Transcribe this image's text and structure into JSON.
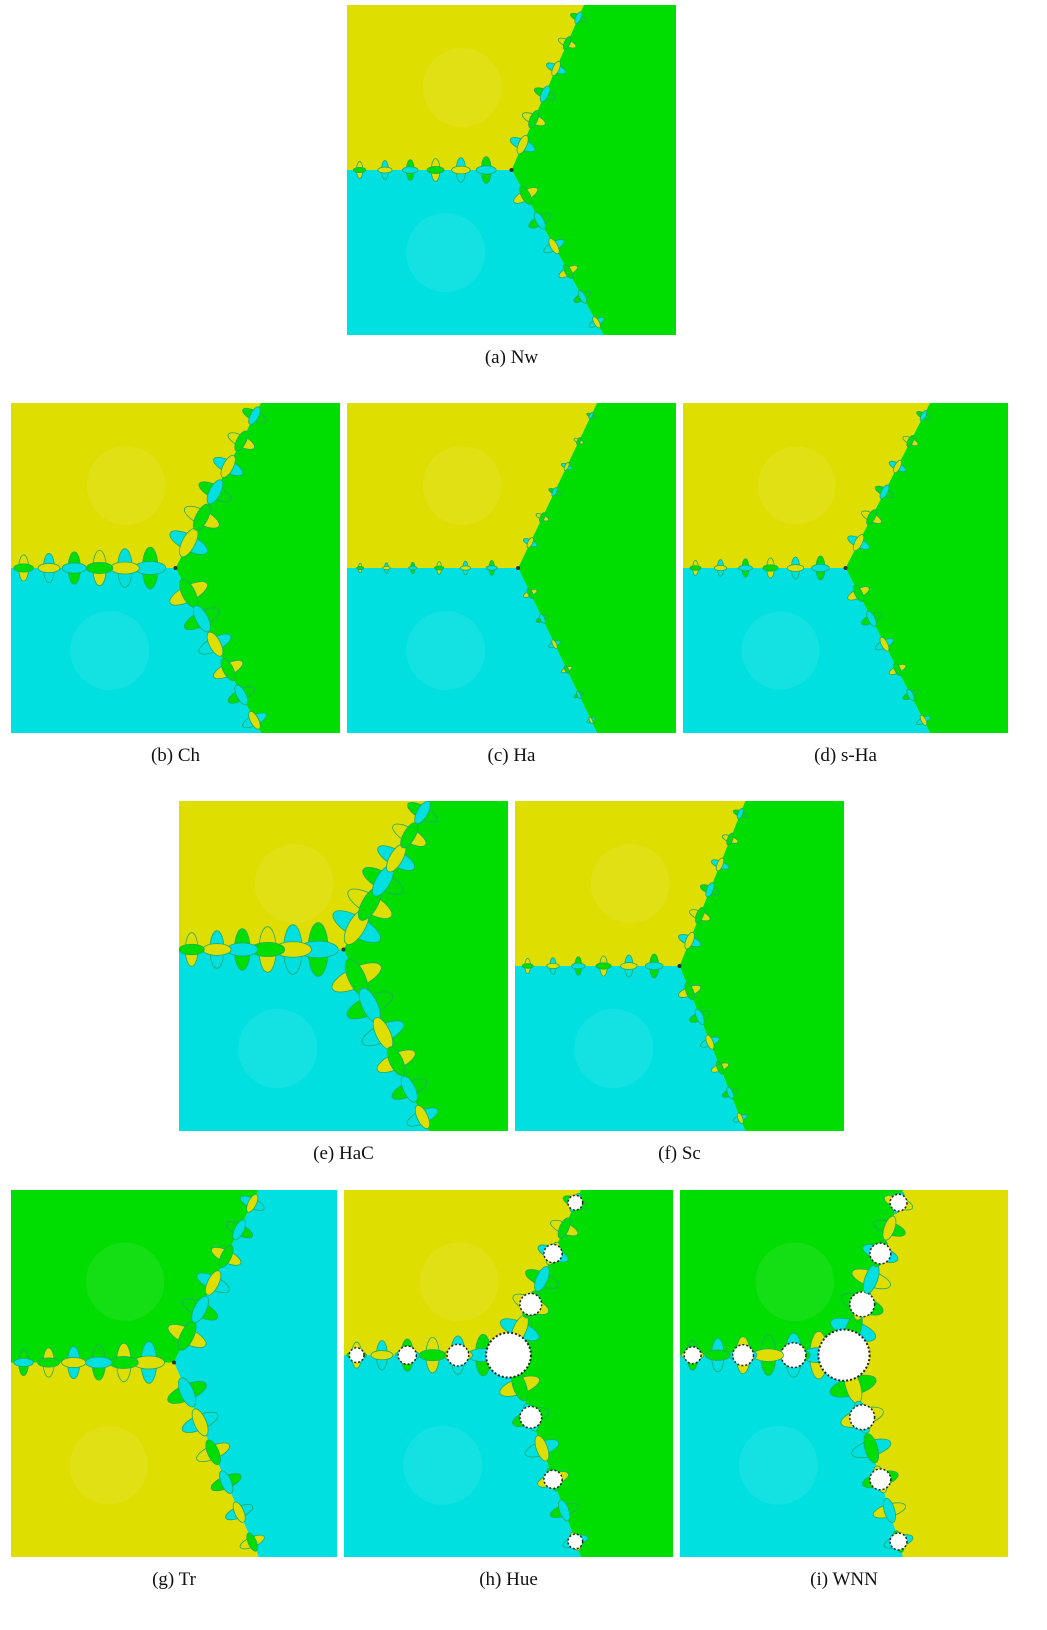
{
  "panels": [
    {
      "caption": "(a) Nw"
    },
    {
      "caption": "(b) Ch"
    },
    {
      "caption": "(c) Ha"
    },
    {
      "caption": "(d) s-Ha"
    },
    {
      "caption": "(e) HaC"
    },
    {
      "caption": "(f) Sc"
    },
    {
      "caption": "(g) Tr"
    },
    {
      "caption": "(h) Hue"
    },
    {
      "caption": "(i) WNN"
    }
  ]
}
